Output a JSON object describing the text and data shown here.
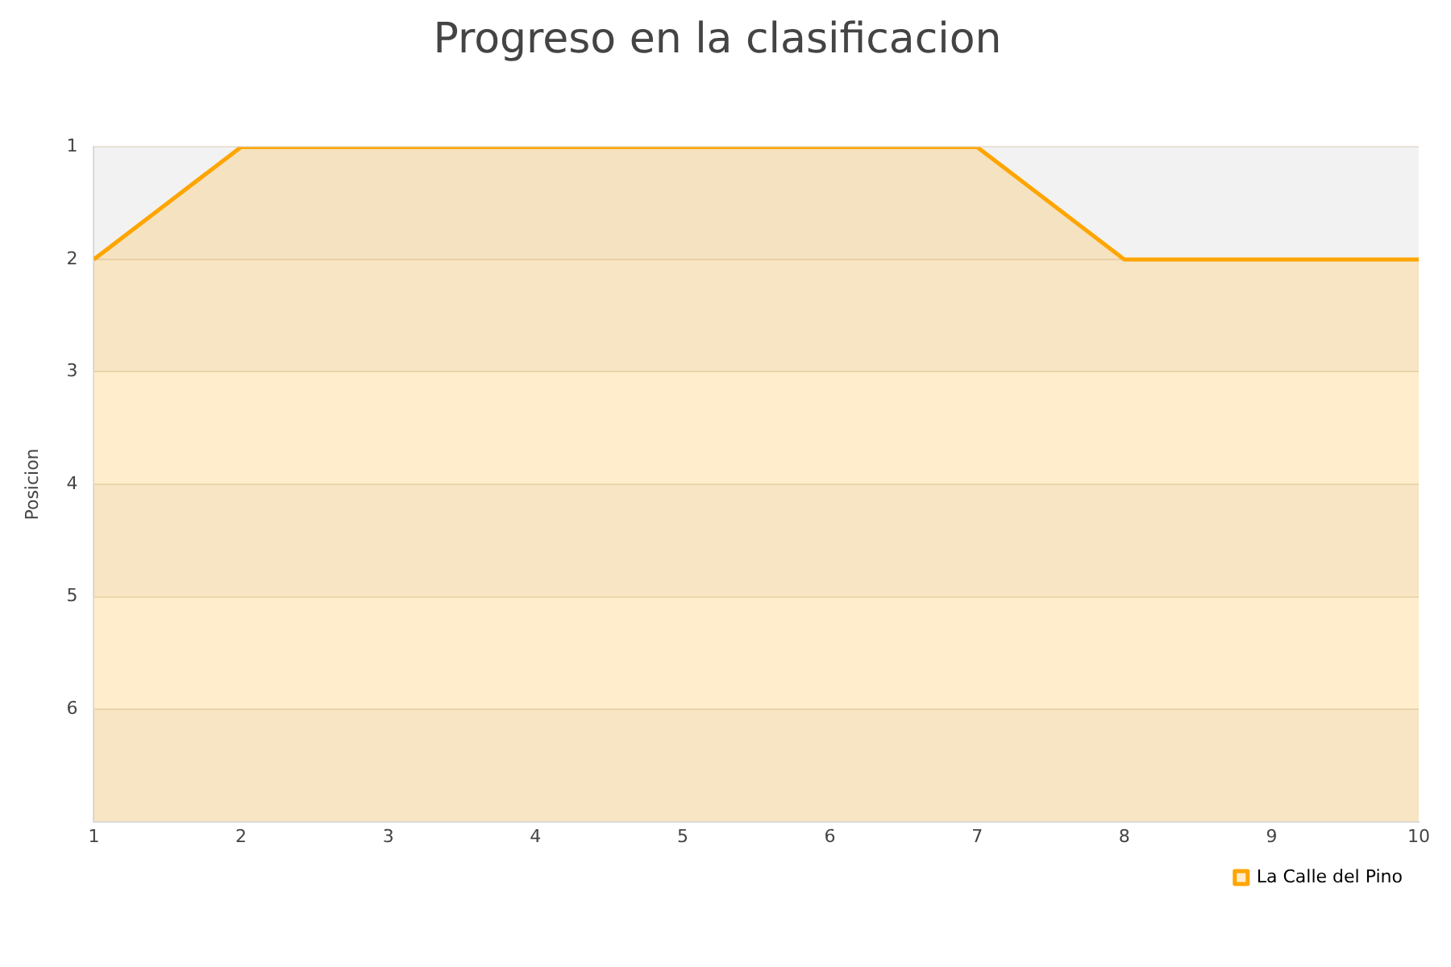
{
  "chart_data": {
    "type": "area",
    "title": "Progreso en la clasificacion",
    "ylabel": "Posicion",
    "x": [
      1,
      2,
      3,
      4,
      5,
      6,
      7,
      8,
      9,
      10
    ],
    "xlim": [
      1,
      10
    ],
    "xticks": [
      1,
      2,
      3,
      4,
      5,
      6,
      7,
      8,
      9,
      10
    ],
    "ylim": [
      7,
      1
    ],
    "yticks": [
      1,
      2,
      3,
      4,
      5,
      6
    ],
    "series": [
      {
        "name": "La Calle del Pino",
        "color": "#ffa500",
        "values": [
          2,
          1,
          1,
          1,
          1,
          1,
          1,
          2,
          2,
          2
        ]
      }
    ],
    "grid": "y",
    "legend": "bottom right",
    "marker": "none",
    "line_style": "solid"
  }
}
